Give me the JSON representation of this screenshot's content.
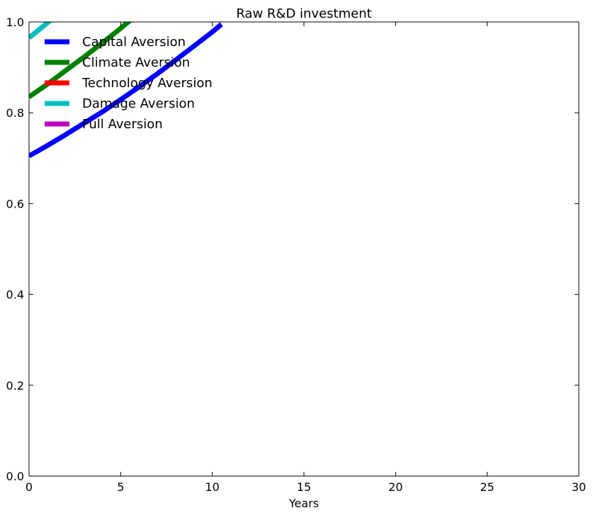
{
  "chart_data": {
    "type": "line",
    "title": "Raw R&D investment",
    "xlabel": "Years",
    "ylabel": "",
    "xlim": [
      0,
      30
    ],
    "ylim": [
      0.0,
      1.0
    ],
    "x_ticks": [
      0,
      5,
      10,
      15,
      20,
      25,
      30
    ],
    "x_tick_labels": [
      "0",
      "5",
      "10",
      "15",
      "20",
      "25",
      "30"
    ],
    "y_ticks": [
      0.0,
      0.2,
      0.4,
      0.6,
      0.8,
      1.0
    ],
    "y_tick_labels": [
      "0.0",
      "0.2",
      "0.4",
      "0.6",
      "0.8",
      "1.0"
    ],
    "grid": false,
    "legend_position": "top-left",
    "series": [
      {
        "name": "Capital Aversion",
        "color": "#0000ff",
        "x": [
          0,
          1,
          2,
          3,
          4,
          5,
          6,
          7,
          8,
          9,
          10,
          10.5
        ],
        "y": [
          0.705,
          0.728,
          0.752,
          0.777,
          0.802,
          0.829,
          0.857,
          0.886,
          0.916,
          0.947,
          0.978,
          0.995
        ]
      },
      {
        "name": "Climate Aversion",
        "color": "#008000",
        "x": [
          0,
          1,
          2,
          3,
          4,
          5,
          6
        ],
        "y": [
          0.835,
          0.863,
          0.893,
          0.923,
          0.954,
          0.986,
          1.02
        ]
      },
      {
        "name": "Technology Aversion",
        "color": "#ff0000",
        "x": [],
        "y": []
      },
      {
        "name": "Damage Aversion",
        "color": "#00bfbf",
        "x": [
          0,
          1,
          2
        ],
        "y": [
          0.965,
          0.998,
          1.03
        ]
      },
      {
        "name": "Full Aversion",
        "color": "#bf00bf",
        "x": [],
        "y": []
      }
    ]
  }
}
